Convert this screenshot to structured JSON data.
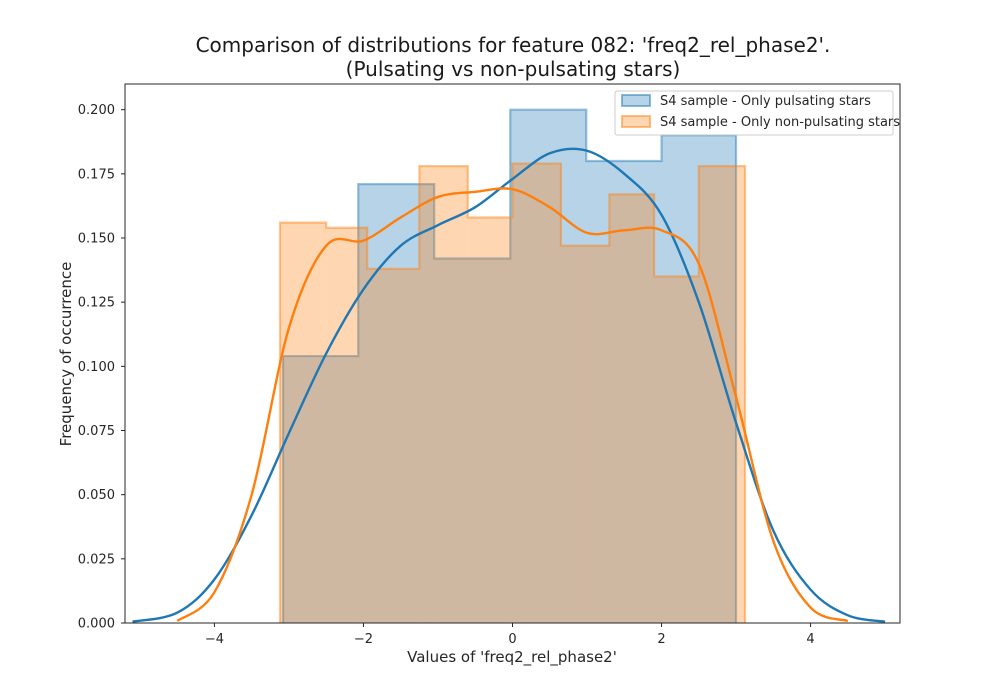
{
  "chart_data": {
    "type": "histogram",
    "title": [
      "Comparison of distributions for feature 082: 'freq2_rel_phase2'.",
      "(Pulsating vs non-pulsating stars)"
    ],
    "xlabel": "Values of 'freq2_rel_phase2'",
    "ylabel": "Frequency of occurrence",
    "xlim": [
      -5.2,
      5.2
    ],
    "ylim": [
      0,
      0.21
    ],
    "xticks": [
      -4,
      -2,
      0,
      2,
      4
    ],
    "yticks": [
      0.0,
      0.025,
      0.05,
      0.075,
      0.1,
      0.125,
      0.15,
      0.175,
      0.2
    ],
    "ytick_labels": [
      "0.000",
      "0.025",
      "0.050",
      "0.075",
      "0.100",
      "0.125",
      "0.150",
      "0.175",
      "0.200"
    ],
    "xtick_labels": [
      "−4",
      "−2",
      "0",
      "2",
      "4"
    ],
    "legend_position": "top-right",
    "grid": false,
    "series": [
      {
        "name": "S4 sample - Only pulsating stars",
        "color": "#1f77b4",
        "bin_edges": [
          -3.08,
          -2.07,
          -1.05,
          -0.03,
          0.99,
          2.0,
          3.0
        ],
        "values": [
          0.104,
          0.171,
          0.142,
          0.2,
          0.18,
          0.19
        ],
        "kde": {
          "x": [
            -5.1,
            -4.5,
            -4.0,
            -3.5,
            -3.0,
            -2.5,
            -2.0,
            -1.5,
            -1.0,
            -0.5,
            0.0,
            0.5,
            1.0,
            1.5,
            2.0,
            2.5,
            3.0,
            3.5,
            4.0,
            4.5,
            5.0
          ],
          "y": [
            0.0005,
            0.004,
            0.017,
            0.042,
            0.074,
            0.105,
            0.13,
            0.147,
            0.155,
            0.162,
            0.173,
            0.183,
            0.184,
            0.175,
            0.159,
            0.125,
            0.078,
            0.036,
            0.013,
            0.003,
            0.0005
          ]
        }
      },
      {
        "name": "S4 sample - Only non-pulsating stars",
        "color": "#ff7f0e",
        "bin_edges": [
          -3.12,
          -2.5,
          -1.95,
          -1.25,
          -0.6,
          0.0,
          0.65,
          1.3,
          1.9,
          2.5,
          3.12
        ],
        "values": [
          0.156,
          0.154,
          0.138,
          0.178,
          0.158,
          0.179,
          0.147,
          0.167,
          0.135,
          0.178
        ],
        "kde": {
          "x": [
            -4.5,
            -4.0,
            -3.5,
            -3.0,
            -2.5,
            -2.0,
            -1.5,
            -1.0,
            -0.5,
            0.0,
            0.5,
            1.0,
            1.5,
            2.0,
            2.5,
            3.0,
            3.5,
            4.0,
            4.5
          ],
          "y": [
            0.0008,
            0.012,
            0.05,
            0.115,
            0.147,
            0.149,
            0.158,
            0.166,
            0.168,
            0.169,
            0.162,
            0.152,
            0.153,
            0.153,
            0.14,
            0.088,
            0.032,
            0.006,
            0.0008
          ]
        }
      }
    ]
  }
}
